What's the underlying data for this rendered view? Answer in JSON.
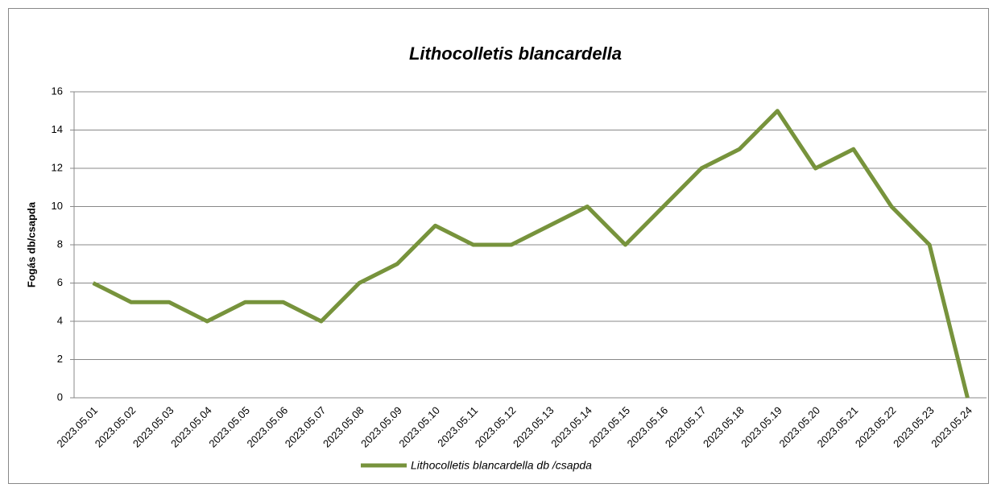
{
  "chart_data": {
    "type": "line",
    "title": "Lithocolletis blancardella",
    "y_label": "Fogás db/csapda",
    "categories": [
      "2023.05.01",
      "2023.05.02",
      "2023.05.03",
      "2023.05.04",
      "2023.05.05",
      "2023.05.06",
      "2023.05.07",
      "2023.05.08",
      "2023.05.09",
      "2023.05.10",
      "2023.05.11",
      "2023.05.12",
      "2023.05.13",
      "2023.05.14",
      "2023.05.15",
      "2023.05.16",
      "2023.05.17",
      "2023.05.18",
      "2023.05.19",
      "2023.05.20",
      "2023.05.21",
      "2023.05.22",
      "2023.05.23",
      "2023.05.24"
    ],
    "series": [
      {
        "name": "Lithocolletis blancardella db /csapda",
        "color": "#77933c",
        "values": [
          6,
          5,
          5,
          4,
          5,
          5,
          4,
          6,
          7,
          9,
          8,
          8,
          9,
          10,
          8,
          10,
          12,
          13,
          15,
          12,
          13,
          10,
          8,
          0
        ]
      }
    ],
    "ylim": [
      0,
      16
    ],
    "yticks": [
      0,
      2,
      4,
      6,
      8,
      10,
      12,
      14,
      16
    ],
    "grid": true,
    "legend": "bottom"
  }
}
